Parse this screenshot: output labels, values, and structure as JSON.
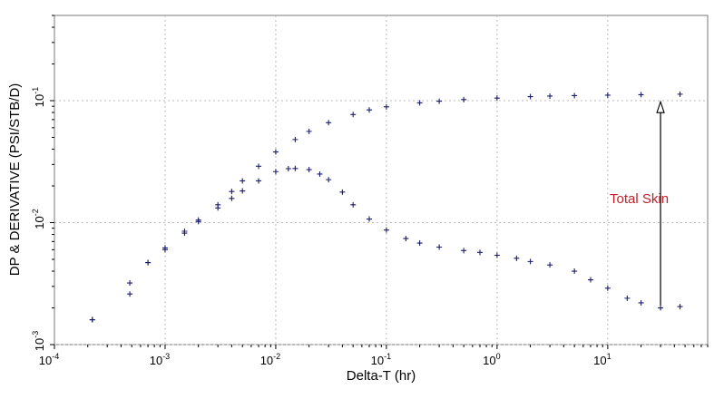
{
  "chart_data": {
    "type": "scatter",
    "title": "",
    "xlabel": "Delta-T (hr)",
    "ylabel": "DP & DERIVATIVE (PSI/STB/D)",
    "x_scale": "log",
    "y_scale": "log",
    "xlim": [
      0.0001,
      80
    ],
    "ylim": [
      0.001,
      0.5
    ],
    "x_tick_values": [
      0.0001,
      0.001,
      0.01,
      0.1,
      1,
      10
    ],
    "x_tick_labels": [
      {
        "base": "10",
        "exp": "-4"
      },
      {
        "base": "10",
        "exp": "-3"
      },
      {
        "base": "10",
        "exp": "-2"
      },
      {
        "base": "10",
        "exp": "-1"
      },
      {
        "base": "10",
        "exp": "0"
      },
      {
        "base": "10",
        "exp": "1"
      }
    ],
    "y_tick_values": [
      0.001,
      0.01,
      0.1
    ],
    "y_tick_labels": [
      {
        "base": "10",
        "exp": "-3"
      },
      {
        "base": "10",
        "exp": "-2"
      },
      {
        "base": "10",
        "exp": "-1"
      }
    ],
    "grid": true,
    "marker": "+",
    "marker_color": "#1c1c6e",
    "series": [
      {
        "kind": "pressure-change",
        "x": [
          0.00022,
          0.00048,
          0.0007,
          0.001,
          0.0015,
          0.002,
          0.003,
          0.004,
          0.005,
          0.007,
          0.01,
          0.015,
          0.02,
          0.03,
          0.05,
          0.07,
          0.1,
          0.2,
          0.3,
          0.5,
          1,
          2,
          3,
          5,
          10,
          20,
          45
        ],
        "y": [
          0.0016,
          0.0032,
          0.0047,
          0.0062,
          0.0085,
          0.0105,
          0.014,
          0.018,
          0.022,
          0.029,
          0.038,
          0.048,
          0.056,
          0.066,
          0.077,
          0.084,
          0.089,
          0.096,
          0.099,
          0.102,
          0.105,
          0.108,
          0.109,
          0.11,
          0.111,
          0.112,
          0.113
        ]
      },
      {
        "kind": "derivative",
        "x": [
          0.00022,
          0.00048,
          0.0007,
          0.001,
          0.0015,
          0.002,
          0.003,
          0.004,
          0.005,
          0.007,
          0.01,
          0.013,
          0.015,
          0.02,
          0.025,
          0.03,
          0.04,
          0.05,
          0.07,
          0.1,
          0.15,
          0.2,
          0.3,
          0.5,
          0.7,
          1,
          1.5,
          2,
          3,
          5,
          7,
          10,
          15,
          20,
          30,
          45
        ],
        "y": [
          0.0016,
          0.0026,
          0.0047,
          0.006,
          0.0082,
          0.0102,
          0.0132,
          0.0158,
          0.0182,
          0.022,
          0.0262,
          0.0277,
          0.0278,
          0.0272,
          0.025,
          0.0225,
          0.0178,
          0.014,
          0.0107,
          0.0087,
          0.0074,
          0.0068,
          0.0063,
          0.0059,
          0.0057,
          0.0054,
          0.0051,
          0.0048,
          0.0045,
          0.004,
          0.0034,
          0.0029,
          0.0024,
          0.0022,
          0.002,
          0.00205
        ]
      }
    ],
    "annotation": {
      "text": "Total Skin",
      "color": "#c0202a",
      "arrow_x": 30,
      "arrow_from_y": 0.0021,
      "arrow_to_y": 0.098
    }
  }
}
